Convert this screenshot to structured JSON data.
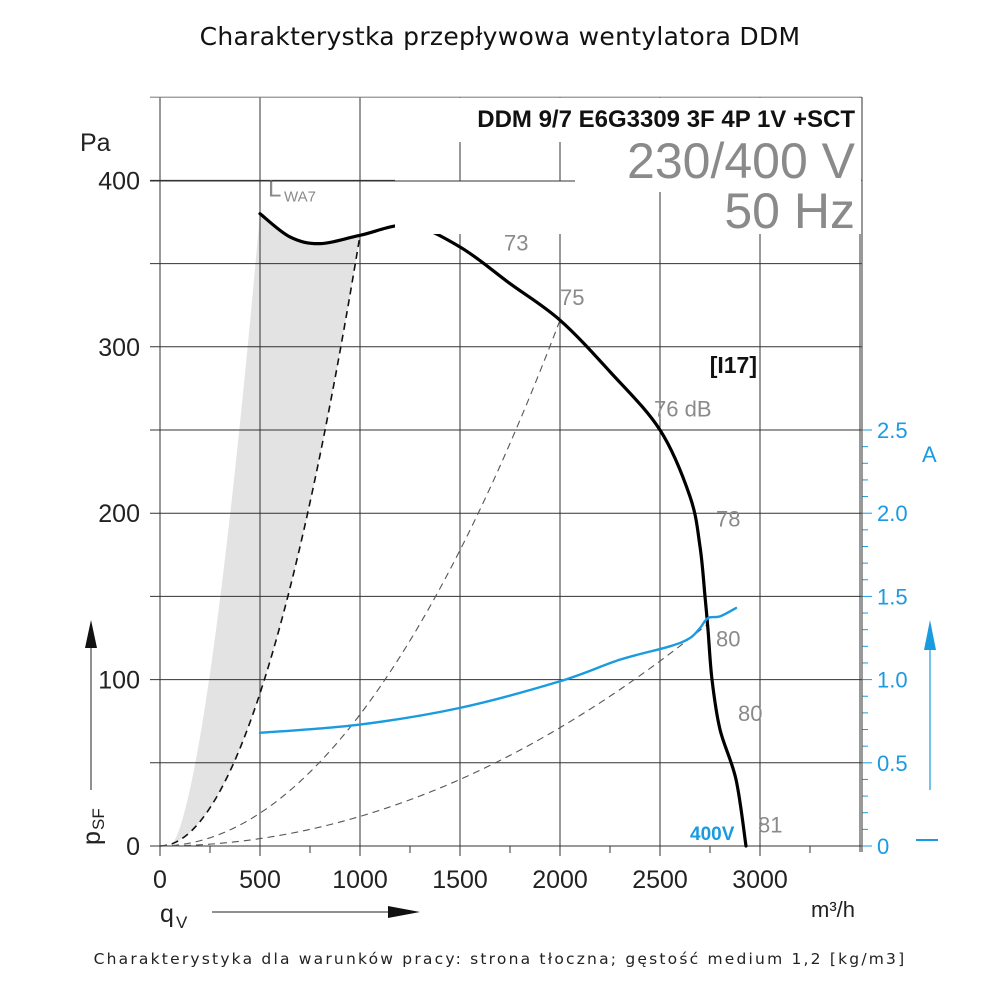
{
  "page": {
    "title": "Charakterystka przepływowa wentylatora DDM",
    "footnote": "Charakterystyka dla warunków pracy: strona tłoczna; gęstość medium 1,2 [kg/m3]"
  },
  "chart_data": {
    "type": "line",
    "title": "Charakterystka przepływowa wentylatora DDM",
    "model": "DDM 9/7 E6G3309 3F 4P 1V +SCT",
    "voltage": "230/400 V",
    "frequency": "50 Hz",
    "curve_id": "[I17]",
    "xlabel": "qV",
    "xunit": "m³/h",
    "ylabel": "psF",
    "yunit": "Pa",
    "y2label": "A",
    "xlim": [
      0,
      3500
    ],
    "ylim": [
      0,
      450
    ],
    "y2lim": [
      0,
      2.7
    ],
    "xticks": [
      0,
      500,
      1000,
      1500,
      2000,
      2500,
      3000
    ],
    "xtick_labels": [
      "0",
      "500",
      "1000",
      "1500",
      "2000",
      "2500",
      "3000"
    ],
    "yticks": [
      0,
      100,
      200,
      300,
      400
    ],
    "ytick_labels": [
      "0",
      "100",
      "200",
      "300",
      "400"
    ],
    "y2ticks": [
      0,
      0.5,
      1.0,
      1.5,
      2.0,
      2.5
    ],
    "y2tick_labels": [
      "0",
      "0.5",
      "1.0",
      "1.5",
      "2.0",
      "2.5"
    ],
    "grid": true,
    "series": [
      {
        "name": "pressure-400V",
        "axis": "left",
        "color": "#000000",
        "x": [
          500,
          650,
          800,
          1000,
          1250,
          1500,
          1750,
          2000,
          2250,
          2500,
          2650,
          2700,
          2725,
          2740,
          2760,
          2800,
          2880,
          2930
        ],
        "y": [
          380,
          366,
          362,
          367,
          373,
          360,
          338,
          316,
          285,
          250,
          210,
          180,
          150,
          130,
          100,
          70,
          40,
          0
        ]
      },
      {
        "name": "current-400V",
        "label": "400V",
        "axis": "right",
        "color": "#1a9be0",
        "x": [
          500,
          1000,
          1500,
          2000,
          2300,
          2550,
          2650,
          2700,
          2740,
          2800,
          2880
        ],
        "y": [
          0.68,
          0.73,
          0.83,
          0.99,
          1.12,
          1.2,
          1.25,
          1.31,
          1.37,
          1.38,
          1.43
        ]
      }
    ],
    "system_curves": [
      {
        "name": "system-curve-1",
        "x_at_curve": 1000,
        "y_at_curve": 367
      },
      {
        "name": "system-curve-2",
        "x_at_curve": 2000,
        "y_at_curve": 316
      },
      {
        "name": "system-curve-3",
        "x_at_curve": 2735,
        "y_at_curve": 133
      }
    ],
    "shaded_region": {
      "name": "LWA7-region",
      "color": "#e3e3e3"
    },
    "annotations": [
      {
        "text": "LWA7",
        "x": 500,
        "y": 395
      },
      {
        "text": "73",
        "x": 1720,
        "y": 358
      },
      {
        "text": "75",
        "x": 2000,
        "y": 325
      },
      {
        "text": "76 dB",
        "x": 2470,
        "y": 258
      },
      {
        "text": "78",
        "x": 2780,
        "y": 192
      },
      {
        "text": "80",
        "x": 2780,
        "y": 120
      },
      {
        "text": "80",
        "x": 2890,
        "y": 75
      },
      {
        "text": "81",
        "x": 2990,
        "y": 8
      }
    ]
  }
}
